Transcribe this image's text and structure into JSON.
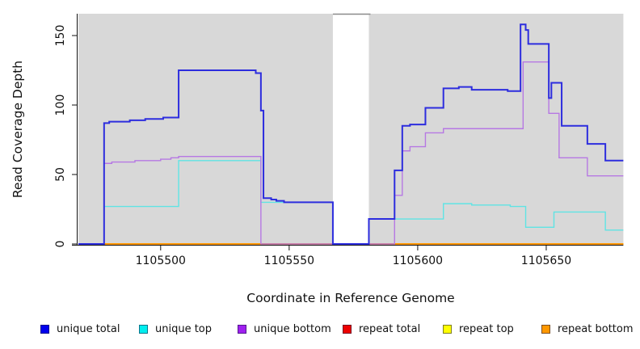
{
  "chart_data": {
    "type": "line",
    "subtype": "step",
    "title": "",
    "xlabel": "Coordinate in Reference Genome",
    "ylabel": "Read Coverage Depth",
    "xlim": [
      1105468,
      1105680
    ],
    "ylim": [
      0,
      166
    ],
    "x_ticks": [
      1105500,
      1105550,
      1105600,
      1105650
    ],
    "y_ticks": [
      0,
      50,
      100,
      150
    ],
    "grid": false,
    "plot_bg_color": "#d8d8d8",
    "gap": {
      "x_start": 1105567,
      "x_end": 1105581,
      "top_line_color": "#8a8a8a"
    },
    "legend_position": "bottom",
    "series": [
      {
        "name": "repeat total",
        "color": "#ee0000",
        "width": 1.4,
        "points": [
          [
            1105468,
            0
          ],
          [
            1105680,
            0
          ]
        ]
      },
      {
        "name": "repeat top",
        "color": "#f0f000",
        "width": 1.4,
        "points": [
          [
            1105468,
            0
          ],
          [
            1105680,
            0
          ]
        ]
      },
      {
        "name": "repeat bottom",
        "color": "#ff9800",
        "width": 2,
        "points": [
          [
            1105468,
            0
          ],
          [
            1105680,
            0
          ]
        ]
      },
      {
        "name": "unique top",
        "color": "#5fe4e4",
        "width": 1.4,
        "points": [
          [
            1105468,
            0
          ],
          [
            1105478,
            27
          ],
          [
            1105507,
            60
          ],
          [
            1105539,
            30
          ],
          [
            1105567,
            0
          ],
          [
            1105581,
            18
          ],
          [
            1105610,
            29
          ],
          [
            1105621,
            28
          ],
          [
            1105636,
            27
          ],
          [
            1105642,
            12
          ],
          [
            1105653,
            23
          ],
          [
            1105673,
            10
          ],
          [
            1105680,
            10
          ]
        ]
      },
      {
        "name": "unique bottom",
        "color": "#b678e3",
        "width": 1.4,
        "points": [
          [
            1105468,
            0
          ],
          [
            1105478,
            58
          ],
          [
            1105481,
            59
          ],
          [
            1105490,
            60
          ],
          [
            1105500,
            61
          ],
          [
            1105504,
            62
          ],
          [
            1105507,
            63
          ],
          [
            1105539,
            0
          ],
          [
            1105591,
            35
          ],
          [
            1105594,
            67
          ],
          [
            1105597,
            70
          ],
          [
            1105603,
            80
          ],
          [
            1105610,
            83
          ],
          [
            1105641,
            131
          ],
          [
            1105651,
            94
          ],
          [
            1105655,
            62
          ],
          [
            1105666,
            49
          ],
          [
            1105680,
            49
          ]
        ]
      },
      {
        "name": "unique total",
        "color": "#2d2dde",
        "width": 2,
        "points": [
          [
            1105468,
            0
          ],
          [
            1105478,
            87
          ],
          [
            1105480,
            88
          ],
          [
            1105488,
            89
          ],
          [
            1105494,
            90
          ],
          [
            1105501,
            91
          ],
          [
            1105507,
            125
          ],
          [
            1105537,
            123
          ],
          [
            1105539,
            96
          ],
          [
            1105540,
            33
          ],
          [
            1105543,
            32
          ],
          [
            1105545,
            31
          ],
          [
            1105548,
            30
          ],
          [
            1105567,
            0
          ],
          [
            1105581,
            18
          ],
          [
            1105591,
            53
          ],
          [
            1105594,
            85
          ],
          [
            1105597,
            86
          ],
          [
            1105603,
            98
          ],
          [
            1105610,
            112
          ],
          [
            1105616,
            113
          ],
          [
            1105621,
            111
          ],
          [
            1105635,
            110
          ],
          [
            1105640,
            158
          ],
          [
            1105642,
            154
          ],
          [
            1105643,
            144
          ],
          [
            1105651,
            105
          ],
          [
            1105652,
            116
          ],
          [
            1105656,
            85
          ],
          [
            1105666,
            72
          ],
          [
            1105673,
            60
          ],
          [
            1105680,
            60
          ]
        ]
      }
    ],
    "legend": [
      {
        "label": "unique total",
        "swatch_color": "#0000ee"
      },
      {
        "label": "unique top",
        "swatch_color": "#00eeee"
      },
      {
        "label": "unique bottom",
        "swatch_color": "#a020f0"
      },
      {
        "label": "repeat total",
        "swatch_color": "#ee0000"
      },
      {
        "label": "repeat top",
        "swatch_color": "#ffff00"
      },
      {
        "label": "repeat bottom",
        "swatch_color": "#ff9800"
      }
    ]
  }
}
